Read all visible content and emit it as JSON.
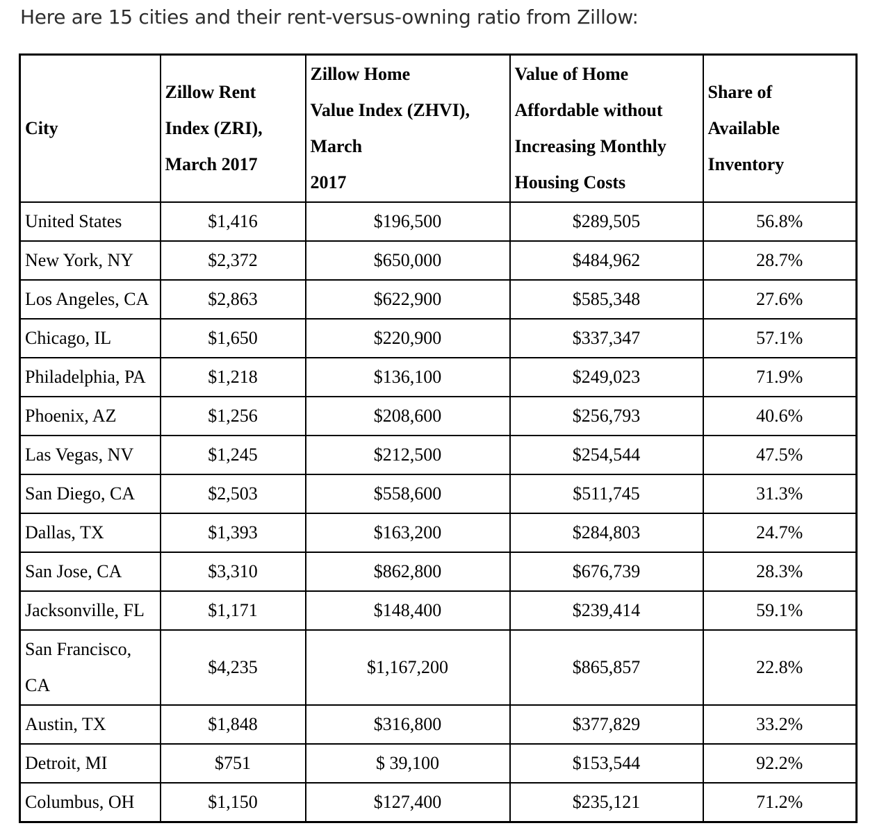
{
  "title": "Here are 15 cities and their rent-versus-owning ratio from Zillow:",
  "table": {
    "columns": [
      {
        "label": "City"
      },
      {
        "label": "Zillow Rent\nIndex (ZRI),\nMarch 2017"
      },
      {
        "label": "Zillow Home\nValue Index (ZHVI),\nMarch\n2017"
      },
      {
        "label": "Value of Home\nAffordable without\nIncreasing Monthly\nHousing Costs"
      },
      {
        "label": "Share of\nAvailable\nInventory"
      }
    ],
    "rows": [
      [
        "United States",
        "$1,416",
        "$196,500",
        "$289,505",
        "56.8%"
      ],
      [
        "New York, NY",
        "$2,372",
        "$650,000",
        "$484,962",
        "28.7%"
      ],
      [
        "Los Angeles, CA",
        "$2,863",
        "$622,900",
        "$585,348",
        "27.6%"
      ],
      [
        "Chicago, IL",
        "$1,650",
        "$220,900",
        "$337,347",
        "57.1%"
      ],
      [
        "Philadelphia, PA",
        "$1,218",
        "$136,100",
        "$249,023",
        "71.9%"
      ],
      [
        "Phoenix, AZ",
        "$1,256",
        "$208,600",
        "$256,793",
        "40.6%"
      ],
      [
        "Las Vegas, NV",
        "$1,245",
        "$212,500",
        "$254,544",
        "47.5%"
      ],
      [
        "San Diego, CA",
        "$2,503",
        "$558,600",
        "$511,745",
        "31.3%"
      ],
      [
        "Dallas, TX",
        "$1,393",
        "$163,200",
        "$284,803",
        "24.7%"
      ],
      [
        "San Jose, CA",
        "$3,310",
        "$862,800",
        "$676,739",
        "28.3%"
      ],
      [
        "Jacksonville, FL",
        "$1,171",
        "$148,400",
        "$239,414",
        "59.1%"
      ],
      [
        "San Francisco, CA",
        "$4,235",
        "$1,167,200",
        "$865,857",
        "22.8%"
      ],
      [
        "Austin, TX",
        "$1,848",
        "$316,800",
        "$377,829",
        "33.2%"
      ],
      [
        "Detroit, MI",
        "$751",
        "$ 39,100",
        "$153,544",
        "92.2%"
      ],
      [
        "Columbus, OH",
        "$1,150",
        "$127,400",
        "$235,121",
        "71.2%"
      ]
    ]
  }
}
